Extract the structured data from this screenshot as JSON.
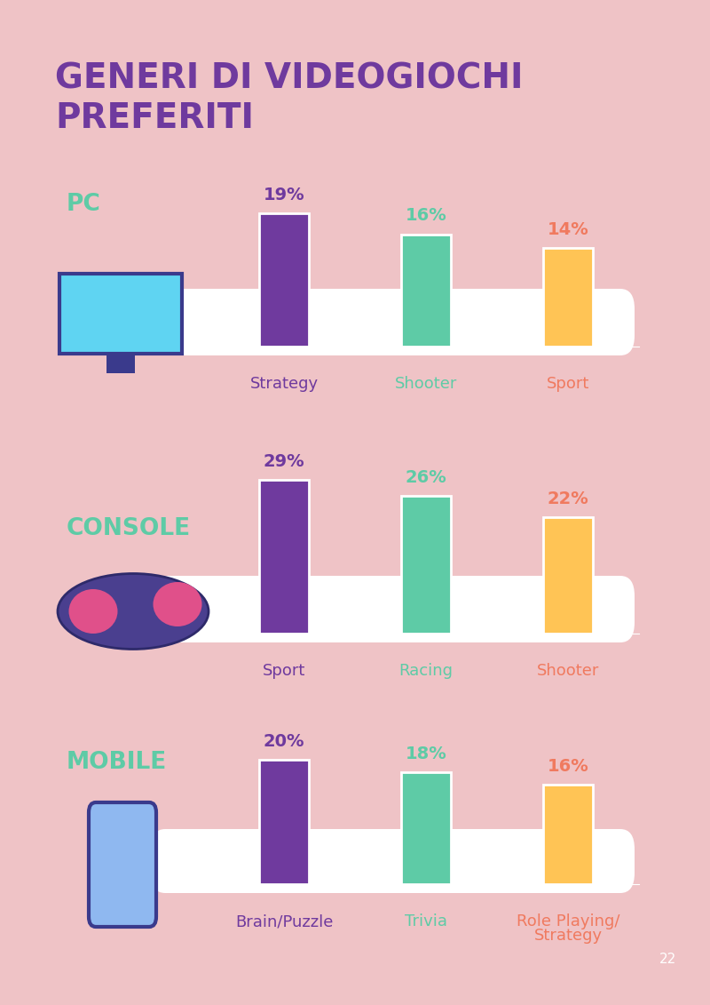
{
  "title": "GENERI DI VIDEOGIOCHI PREFERITI",
  "page": 22,
  "chart_data": [
    {
      "type": "bar",
      "title": "PC",
      "categories": [
        "Strategy",
        "Shooter",
        "Sport"
      ],
      "values": [
        19,
        16,
        14
      ],
      "value_labels": [
        "19%",
        "16%",
        "14%"
      ],
      "colors": [
        "#6f3a9e",
        "#5ecba6",
        "#ffc455"
      ],
      "ylim": [
        0,
        30
      ],
      "data_labels": true,
      "tick_labels": "x"
    },
    {
      "type": "bar",
      "title": "CONSOLE",
      "categories": [
        "Sport",
        "Racing",
        "Shooter"
      ],
      "values": [
        29,
        26,
        22
      ],
      "value_labels": [
        "29%",
        "26%",
        "22%"
      ],
      "colors": [
        "#6f3a9e",
        "#5ecba6",
        "#ffc455"
      ],
      "ylim": [
        0,
        30
      ],
      "data_labels": true,
      "tick_labels": "x"
    },
    {
      "type": "bar",
      "title": "MOBILE",
      "categories": [
        "Brain/Puzzle",
        "Trivia",
        "Role Playing/\nStrategy"
      ],
      "values": [
        20,
        18,
        16
      ],
      "value_labels": [
        "20%",
        "18%",
        "16%"
      ],
      "colors": [
        "#6f3a9e",
        "#5ecba6",
        "#ffc455"
      ],
      "ylim": [
        0,
        30
      ],
      "data_labels": true,
      "tick_labels": "x"
    }
  ]
}
